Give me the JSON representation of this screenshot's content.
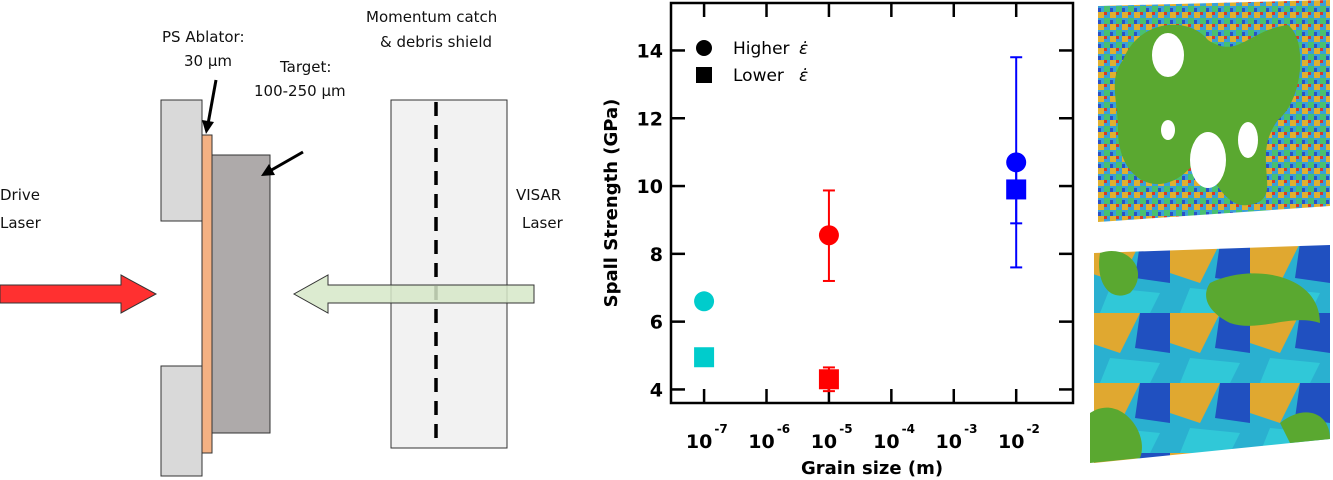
{
  "diagram": {
    "ablator_label": "PS Ablator:",
    "ablator_thickness": "30 µm",
    "target_label": "Target:",
    "target_thickness": "100-250 µm",
    "shield_label_1": "Momentum catch",
    "shield_label_2": "& debris shield",
    "drive_label_1": "Drive",
    "drive_label_2": "Laser",
    "visar_label_1": "VISAR",
    "visar_label_2": "Laser",
    "colors": {
      "drive_laser": "#ff3030",
      "visar_laser": "#d6e8c8",
      "ablator": "#f4b183",
      "target": "#aeaaaa",
      "holder": "#d9d9d9",
      "shield": "#f2f2f2"
    }
  },
  "chart_data": {
    "type": "scatter",
    "xlabel": "Grain size (m)",
    "ylabel": "Spall Strength (GPa)",
    "x_scale": "log",
    "xlim": [
      -7.53,
      -1.09
    ],
    "ylim": [
      3.6,
      15.4
    ],
    "x_ticks": [
      {
        "exp": -7,
        "label": "10",
        "sup": "-7"
      },
      {
        "exp": -6,
        "label": "10",
        "sup": "-6"
      },
      {
        "exp": -5,
        "label": "10",
        "sup": "-5"
      },
      {
        "exp": -4,
        "label": "10",
        "sup": "-4"
      },
      {
        "exp": -3,
        "label": "10",
        "sup": "-3"
      },
      {
        "exp": -2,
        "label": "10",
        "sup": "-2"
      }
    ],
    "y_ticks": [
      4,
      6,
      8,
      10,
      12,
      14
    ],
    "grid": false,
    "legend": {
      "position": "top-left",
      "entries": [
        {
          "marker": "circle",
          "label": "Higher ",
          "symbol": "ε̇"
        },
        {
          "marker": "square",
          "label": "Lower ",
          "symbol": "ε̇"
        }
      ]
    },
    "series": [
      {
        "name": "Higher ε̇",
        "marker": "circle",
        "points": [
          {
            "x": 1e-07,
            "y": 6.6,
            "color": "#00cccc"
          },
          {
            "x": 1e-05,
            "y": 8.55,
            "err": [
              7.2,
              9.87
            ],
            "color": "#ff0000"
          },
          {
            "x": 0.01,
            "y": 10.7,
            "err": [
              7.6,
              13.8
            ],
            "color": "#0000ff"
          }
        ]
      },
      {
        "name": "Lower ε̇",
        "marker": "square",
        "points": [
          {
            "x": 1e-07,
            "y": 4.95,
            "color": "#00cccc"
          },
          {
            "x": 1e-05,
            "y": 4.3,
            "err": [
              3.95,
              4.65
            ],
            "color": "#ff0000"
          },
          {
            "x": 0.01,
            "y": 9.9,
            "err": [
              8.9,
              10.7
            ],
            "color": "#0000ff"
          }
        ]
      }
    ]
  }
}
